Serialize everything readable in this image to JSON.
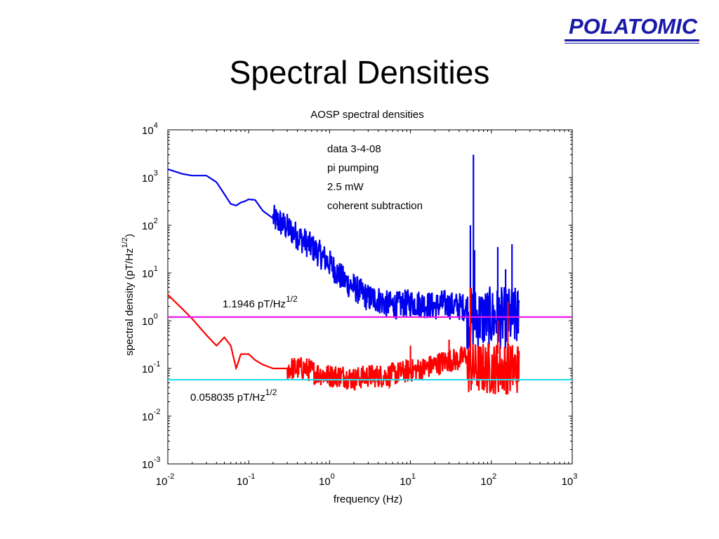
{
  "slide": {
    "title": "Spectral Densities",
    "logo_text": "POLATOMIC"
  },
  "colors": {
    "blue_series": "#0000ee",
    "red_series": "#ff0000",
    "magenta_line": "#e81ce8",
    "cyan_line": "#22e0f0",
    "logo": "#1a1aa8"
  },
  "chart_data": {
    "type": "line",
    "title": "AOSP spectral densities",
    "xlabel": "frequency  (Hz)",
    "ylabel": "spectral density  (pT/Hz",
    "ylabel_sup": "1/2",
    "ylabel_close": ")",
    "xscale": "log",
    "yscale": "log",
    "xlim": [
      0.01,
      1000
    ],
    "ylim": [
      0.001,
      10000
    ],
    "grid": false,
    "x_ticks": [
      {
        "base": "10",
        "exp": "-2",
        "value": 0.01
      },
      {
        "base": "10",
        "exp": "-1",
        "value": 0.1
      },
      {
        "base": "10",
        "exp": "0",
        "value": 1
      },
      {
        "base": "10",
        "exp": "1",
        "value": 10
      },
      {
        "base": "10",
        "exp": "2",
        "value": 100
      },
      {
        "base": "10",
        "exp": "3",
        "value": 1000
      }
    ],
    "y_ticks": [
      {
        "base": "10",
        "exp": "-3",
        "value": 0.001
      },
      {
        "base": "10",
        "exp": "-2",
        "value": 0.01
      },
      {
        "base": "10",
        "exp": "-1",
        "value": 0.1
      },
      {
        "base": "10",
        "exp": "0",
        "value": 1
      },
      {
        "base": "10",
        "exp": "1",
        "value": 10
      },
      {
        "base": "10",
        "exp": "2",
        "value": 100
      },
      {
        "base": "10",
        "exp": "3",
        "value": 1000
      },
      {
        "base": "10",
        "exp": "4",
        "value": 10000
      }
    ],
    "annotations": [
      "data 3-4-08",
      "pi pumping",
      "2.5 mW",
      "coherent subtraction"
    ],
    "hlines": [
      {
        "value": 1.1946,
        "label": "1.1946 pT/Hz",
        "label_sup": "1/2",
        "color": "#e81ce8"
      },
      {
        "value": 0.058035,
        "label": "0.058035 pT/Hz",
        "label_sup": "1/2",
        "color": "#22e0f0"
      }
    ],
    "series": [
      {
        "color": "#0000ee",
        "x": [
          0.01,
          0.015,
          0.02,
          0.03,
          0.04,
          0.05,
          0.06,
          0.07,
          0.08,
          0.09,
          0.1,
          0.12,
          0.15,
          0.2,
          0.25,
          0.3,
          0.4,
          0.5,
          0.7,
          1,
          1.5,
          2,
          3,
          4,
          5,
          7,
          10,
          15,
          20,
          25,
          30,
          40,
          50
        ],
        "y": [
          1500,
          1200,
          1100,
          1100,
          800,
          450,
          280,
          260,
          300,
          320,
          350,
          340,
          200,
          140,
          110,
          90,
          60,
          45,
          28,
          16,
          7,
          5,
          3,
          2.8,
          2.2,
          2.1,
          2.4,
          2.2,
          2.0,
          2.3,
          2.1,
          2.0,
          1.9
        ],
        "noise_from": 0.2,
        "noise_amp": 0.3,
        "spikes": [
          {
            "x": 60,
            "y": 3000
          },
          {
            "x": 55,
            "y": 100
          },
          {
            "x": 62,
            "y": 30
          },
          {
            "x": 120,
            "y": 35
          },
          {
            "x": 150,
            "y": 12
          },
          {
            "x": 180,
            "y": 40
          }
        ]
      },
      {
        "color": "#ff0000",
        "x": [
          0.01,
          0.015,
          0.02,
          0.03,
          0.04,
          0.05,
          0.06,
          0.07,
          0.08,
          0.1,
          0.12,
          0.15,
          0.2,
          0.3,
          0.5,
          0.7,
          1,
          1.5,
          2,
          3,
          5,
          7,
          10,
          15,
          20,
          30,
          40,
          50
        ],
        "y": [
          3.5,
          1.8,
          1.1,
          0.5,
          0.3,
          0.45,
          0.3,
          0.1,
          0.2,
          0.2,
          0.15,
          0.12,
          0.1,
          0.1,
          0.1,
          0.08,
          0.07,
          0.07,
          0.06,
          0.07,
          0.07,
          0.08,
          0.09,
          0.1,
          0.12,
          0.15,
          0.15,
          0.2
        ],
        "noise_from": 0.3,
        "noise_amp": 0.25,
        "spikes": [
          {
            "x": 10,
            "y": 0.3
          },
          {
            "x": 30,
            "y": 0.4
          },
          {
            "x": 55,
            "y": 5
          },
          {
            "x": 120,
            "y": 1.0
          },
          {
            "x": 160,
            "y": 2.5
          }
        ]
      }
    ]
  }
}
